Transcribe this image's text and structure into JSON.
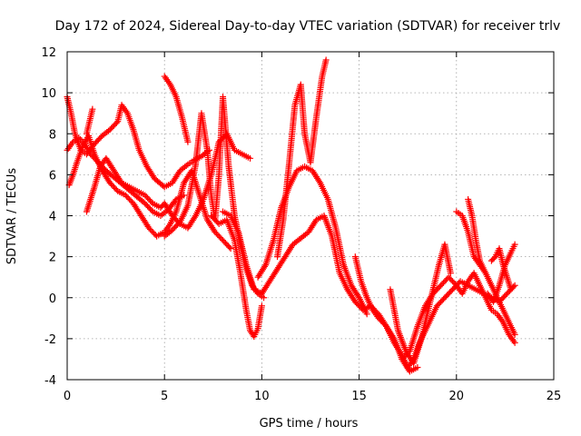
{
  "chart_data": {
    "type": "scatter",
    "title": "Day 172 of 2024, Sidereal Day-to-day VTEC variation (SDTVAR) for receiver trlv",
    "xlabel": "GPS time / hours",
    "ylabel": "SDTVAR / TECUs",
    "xlim": [
      0,
      25
    ],
    "ylim": [
      -4,
      12
    ],
    "xticks": [
      "0",
      "5",
      "10",
      "15",
      "20",
      "25"
    ],
    "yticks": [
      "-4",
      "-2",
      "0",
      "2",
      "4",
      "6",
      "8",
      "10",
      "12"
    ],
    "grid": true,
    "marker": "+",
    "color": "#ff0000",
    "series": [
      {
        "x": [
          0.0,
          0.3,
          0.6,
          0.9,
          1.2,
          1.6,
          2.0,
          2.5,
          3.0,
          3.5,
          4.0,
          4.4,
          4.8,
          5.2,
          5.6,
          6.0
        ],
        "y": [
          7.2,
          7.6,
          7.8,
          7.5,
          7.0,
          6.6,
          6.2,
          5.8,
          5.4,
          5.0,
          4.6,
          4.2,
          4.0,
          4.3,
          4.8,
          5.0
        ]
      },
      {
        "x": [
          0.0,
          0.2,
          0.4,
          0.7,
          1.0,
          1.4,
          1.8,
          2.2,
          2.6,
          2.8,
          3.1,
          3.4,
          3.7,
          4.1,
          4.5,
          5.0,
          5.4,
          5.8,
          6.2,
          6.5,
          6.9,
          7.3
        ],
        "y": [
          9.8,
          9.0,
          8.0,
          7.2,
          7.0,
          7.5,
          7.9,
          8.2,
          8.6,
          9.4,
          9.0,
          8.2,
          7.2,
          6.4,
          5.8,
          5.4,
          5.6,
          6.2,
          6.5,
          6.7,
          6.9,
          7.2
        ]
      },
      {
        "x": [
          0.1,
          0.3,
          0.5,
          0.8,
          1.1,
          1.4,
          1.8,
          2.2,
          2.6,
          3.0,
          3.4,
          3.8,
          4.2,
          4.6,
          5.0,
          5.3,
          5.6,
          6.0,
          6.4,
          6.8,
          7.2,
          7.6,
          8.0,
          8.4
        ],
        "y": [
          5.5,
          6.0,
          6.6,
          7.4,
          7.9,
          7.0,
          6.2,
          5.6,
          5.2,
          5.0,
          4.6,
          4.0,
          3.4,
          3.0,
          3.2,
          3.6,
          4.2,
          5.6,
          6.2,
          5.0,
          3.8,
          3.2,
          2.8,
          2.4
        ]
      },
      {
        "x": [
          1.0,
          1.2,
          1.4,
          1.7,
          2.0,
          2.4,
          2.8,
          3.2,
          3.6,
          4.0,
          4.4,
          4.8,
          5.0,
          5.4,
          5.8,
          6.2,
          6.6,
          7.0,
          7.4,
          7.8,
          8.2,
          8.6,
          9.0,
          9.4
        ],
        "y": [
          4.2,
          4.8,
          5.4,
          6.4,
          6.8,
          6.2,
          5.6,
          5.4,
          5.2,
          5.0,
          4.6,
          4.4,
          4.6,
          4.0,
          3.6,
          3.4,
          4.0,
          4.8,
          6.0,
          7.6,
          8.0,
          7.2,
          7.0,
          6.8
        ]
      },
      {
        "x": [
          5.0,
          5.3,
          5.6,
          5.9,
          6.2
        ],
        "y": [
          10.8,
          10.4,
          9.8,
          8.8,
          7.6
        ]
      },
      {
        "x": [
          1.0,
          1.3
        ],
        "y": [
          8.0,
          9.2
        ]
      },
      {
        "x": [
          5.0,
          5.4,
          5.8,
          6.2,
          6.6,
          6.9,
          7.2,
          7.4,
          7.6,
          7.8,
          8.0,
          8.3,
          8.6,
          8.9,
          9.2,
          9.5,
          9.8,
          10.1
        ],
        "y": [
          3.0,
          3.3,
          3.7,
          4.5,
          6.5,
          9.0,
          7.2,
          5.0,
          3.8,
          6.0,
          9.8,
          6.4,
          4.0,
          2.6,
          1.4,
          0.6,
          0.2,
          0.0
        ]
      },
      {
        "x": [
          7.4,
          7.8,
          8.2,
          8.6,
          8.9,
          9.2,
          9.4,
          9.6,
          9.8,
          10.0
        ],
        "y": [
          4.0,
          3.6,
          3.8,
          2.8,
          1.2,
          -0.6,
          -1.6,
          -1.9,
          -1.5,
          -0.4
        ]
      },
      {
        "x": [
          8.0,
          8.4,
          8.8,
          9.2,
          9.6,
          10.0,
          10.4,
          10.8,
          11.2,
          11.6,
          12.0,
          12.4,
          12.8,
          13.2,
          13.6,
          14.0,
          14.4,
          14.8,
          15.2,
          15.6,
          16.0,
          16.4,
          16.8,
          17.2,
          17.6,
          18.0
        ],
        "y": [
          4.2,
          4.0,
          3.2,
          1.6,
          0.4,
          0.2,
          0.8,
          1.4,
          2.0,
          2.6,
          2.9,
          3.2,
          3.8,
          4.0,
          3.0,
          1.2,
          0.4,
          -0.2,
          -0.6,
          -0.4,
          -0.8,
          -1.4,
          -2.0,
          -3.0,
          -3.6,
          -3.4
        ]
      },
      {
        "x": [
          9.8,
          10.2,
          10.6,
          11.0,
          11.4,
          11.8,
          12.2,
          12.6,
          13.0,
          13.4,
          13.8,
          14.2,
          14.6,
          15.0,
          15.4
        ],
        "y": [
          1.0,
          1.6,
          2.8,
          4.4,
          5.4,
          6.2,
          6.4,
          6.2,
          5.6,
          4.8,
          3.4,
          1.6,
          0.6,
          0.0,
          -0.8
        ]
      },
      {
        "x": [
          10.8,
          11.1,
          11.4,
          11.7,
          12.0,
          12.2,
          12.5,
          12.8,
          13.1,
          13.3
        ],
        "y": [
          2.0,
          3.8,
          6.5,
          9.4,
          10.4,
          8.0,
          6.6,
          8.8,
          10.8,
          11.6
        ]
      },
      {
        "x": [
          14.8,
          15.1,
          15.4,
          15.7,
          16.0,
          16.4,
          16.8,
          17.2,
          17.5,
          17.8,
          18.1,
          18.4,
          18.7,
          19.0,
          19.4,
          19.8,
          20.2,
          20.6,
          21.0,
          21.4,
          21.8,
          22.2,
          22.6,
          23.0
        ],
        "y": [
          2.0,
          0.8,
          0.0,
          -0.6,
          -1.0,
          -1.4,
          -2.2,
          -2.8,
          -3.4,
          -3.0,
          -2.2,
          -1.6,
          -1.0,
          -0.4,
          0.0,
          0.4,
          0.8,
          0.6,
          0.4,
          0.2,
          0.0,
          -0.2,
          0.2,
          0.6
        ]
      },
      {
        "x": [
          17.2,
          17.6,
          18.0,
          18.4,
          18.8,
          19.2,
          19.6,
          20.0,
          20.3,
          20.6,
          20.9,
          21.2,
          21.5,
          21.8,
          22.1,
          22.4,
          22.7,
          23.0
        ],
        "y": [
          -3.0,
          -2.6,
          -1.4,
          -0.4,
          0.2,
          0.6,
          1.0,
          0.6,
          0.2,
          0.8,
          1.2,
          0.6,
          0.0,
          -0.6,
          -0.8,
          -1.2,
          -1.8,
          -2.2
        ]
      },
      {
        "x": [
          16.6,
          17.0,
          17.4,
          17.8,
          18.2,
          18.5,
          18.8,
          19.1,
          19.4,
          19.7
        ],
        "y": [
          0.4,
          -1.6,
          -2.6,
          -3.2,
          -2.0,
          -0.8,
          0.4,
          1.6,
          2.6,
          1.2
        ]
      },
      {
        "x": [
          20.0,
          20.3,
          20.6,
          20.9,
          21.2,
          21.5,
          21.8,
          22.1,
          22.4,
          22.7,
          23.0
        ],
        "y": [
          4.2,
          4.0,
          3.2,
          2.0,
          1.6,
          1.2,
          0.6,
          0.0,
          -0.6,
          -1.2,
          -1.8
        ]
      },
      {
        "x": [
          20.6,
          20.8,
          21.0,
          21.2,
          21.5
        ],
        "y": [
          4.8,
          4.0,
          2.8,
          1.8,
          1.2
        ]
      },
      {
        "x": [
          21.8,
          22.0,
          22.2,
          22.4,
          22.6,
          22.8
        ],
        "y": [
          1.8,
          2.0,
          2.4,
          1.6,
          1.0,
          0.4
        ]
      },
      {
        "x": [
          21.6,
          21.9,
          22.2,
          22.5,
          22.8,
          23.0
        ],
        "y": [
          0.2,
          -0.2,
          0.6,
          1.6,
          2.2,
          2.6
        ]
      }
    ]
  }
}
